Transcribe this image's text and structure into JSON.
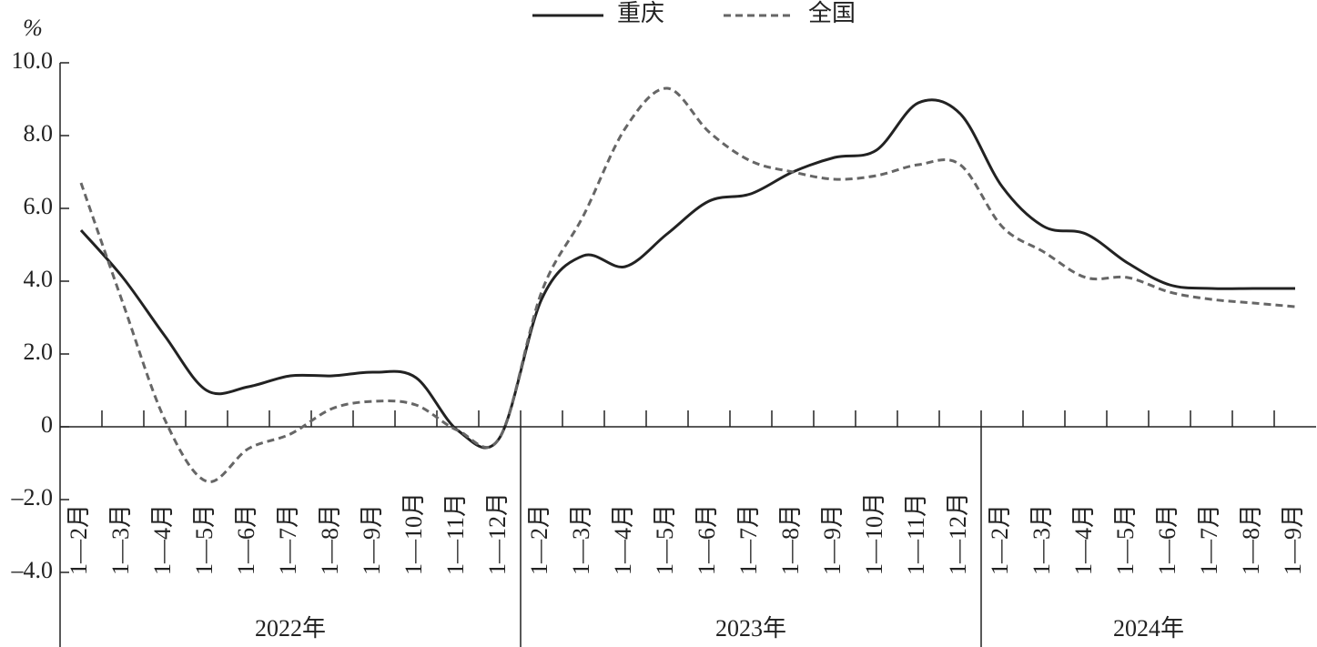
{
  "chart_data": {
    "type": "line",
    "y_label": "%",
    "category_groups": [
      {
        "label": "2022年",
        "categories": [
          "1—2月",
          "1—3月",
          "1—4月",
          "1—5月",
          "1—6月",
          "1—7月",
          "1—8月",
          "1—9月",
          "1—10月",
          "1—11月",
          "1—12月"
        ]
      },
      {
        "label": "2023年",
        "categories": [
          "1—2月",
          "1—3月",
          "1—4月",
          "1—5月",
          "1—6月",
          "1—7月",
          "1—8月",
          "1—9月",
          "1—10月",
          "1—11月",
          "1—12月"
        ]
      },
      {
        "label": "2024年",
        "categories": [
          "1—2月",
          "1—3月",
          "1—4月",
          "1—5月",
          "1—6月",
          "1—7月",
          "1—8月",
          "1—9月"
        ]
      }
    ],
    "series": [
      {
        "name": "重庆",
        "color": "#222222",
        "dash": false,
        "values": [
          5.4,
          4.1,
          2.5,
          1.0,
          1.1,
          1.4,
          1.4,
          1.5,
          1.35,
          -0.1,
          -0.3,
          3.5,
          4.7,
          4.4,
          5.3,
          6.2,
          6.4,
          7.0,
          7.4,
          7.6,
          8.9,
          8.6,
          6.6,
          5.5,
          5.3,
          4.5,
          3.9,
          3.8,
          3.8,
          3.8
        ]
      },
      {
        "name": "全国",
        "color": "#666666",
        "dash": true,
        "values": [
          6.7,
          3.4,
          0.2,
          -1.5,
          -0.6,
          -0.2,
          0.5,
          0.7,
          0.6,
          -0.1,
          -0.3,
          3.7,
          5.8,
          8.2,
          9.3,
          8.1,
          7.3,
          7.0,
          6.8,
          6.9,
          7.2,
          7.2,
          5.5,
          4.8,
          4.1,
          4.1,
          3.7,
          3.5,
          3.4,
          3.3
        ]
      }
    ],
    "ylim": [
      -4,
      10
    ],
    "yticks": [
      {
        "value": 10,
        "label": "10.0"
      },
      {
        "value": 8,
        "label": "8.0"
      },
      {
        "value": 6,
        "label": "6.0"
      },
      {
        "value": 4,
        "label": "4.0"
      },
      {
        "value": 2,
        "label": "2.0"
      },
      0,
      {
        "value": -2,
        "label": "–2.0"
      },
      {
        "value": -4,
        "label": "–4.0"
      }
    ],
    "legend": "top"
  }
}
